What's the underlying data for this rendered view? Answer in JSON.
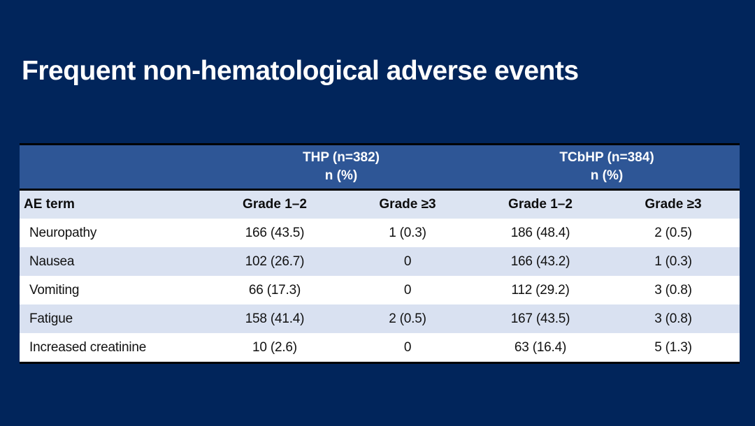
{
  "slide": {
    "title": "Frequent non-hematological adverse events",
    "colors": {
      "background": "#01255b",
      "group_header_blue": "#2e5696",
      "subheader_light": "#dce4f2",
      "stripe_light": "#d9e1f1",
      "row_white": "#ffffff",
      "border_black": "#010101",
      "title_text": "#ffffff",
      "header_text": "#ffffff",
      "body_text": "#111111"
    }
  },
  "table": {
    "group_headers": [
      {
        "line1": "THP (n=382)",
        "line2": "n (%)"
      },
      {
        "line1": "TCbHP (n=384)",
        "line2": "n (%)"
      }
    ],
    "column_headers": [
      "AE term",
      "Grade 1–2",
      "Grade ≥3",
      "Grade 1–2",
      "Grade ≥3"
    ],
    "rows": [
      {
        "ae_term": "Neuropathy",
        "thp_grade1_2": "166 (43.5)",
        "thp_grade3plus": "1 (0.3)",
        "tcbhp_grade1_2": "186 (48.4)",
        "tcbhp_grade3plus": "2 (0.5)"
      },
      {
        "ae_term": "Nausea",
        "thp_grade1_2": "102 (26.7)",
        "thp_grade3plus": "0",
        "tcbhp_grade1_2": "166 (43.2)",
        "tcbhp_grade3plus": "1 (0.3)"
      },
      {
        "ae_term": "Vomiting",
        "thp_grade1_2": "66 (17.3)",
        "thp_grade3plus": "0",
        "tcbhp_grade1_2": "112 (29.2)",
        "tcbhp_grade3plus": "3 (0.8)"
      },
      {
        "ae_term": "Fatigue",
        "thp_grade1_2": "158 (41.4)",
        "thp_grade3plus": "2 (0.5)",
        "tcbhp_grade1_2": "167 (43.5)",
        "tcbhp_grade3plus": "3 (0.8)"
      },
      {
        "ae_term": "Increased creatinine",
        "thp_grade1_2": "10 (2.6)",
        "thp_grade3plus": "0",
        "tcbhp_grade1_2": "63 (16.4)",
        "tcbhp_grade3plus": "5 (1.3)"
      }
    ]
  }
}
